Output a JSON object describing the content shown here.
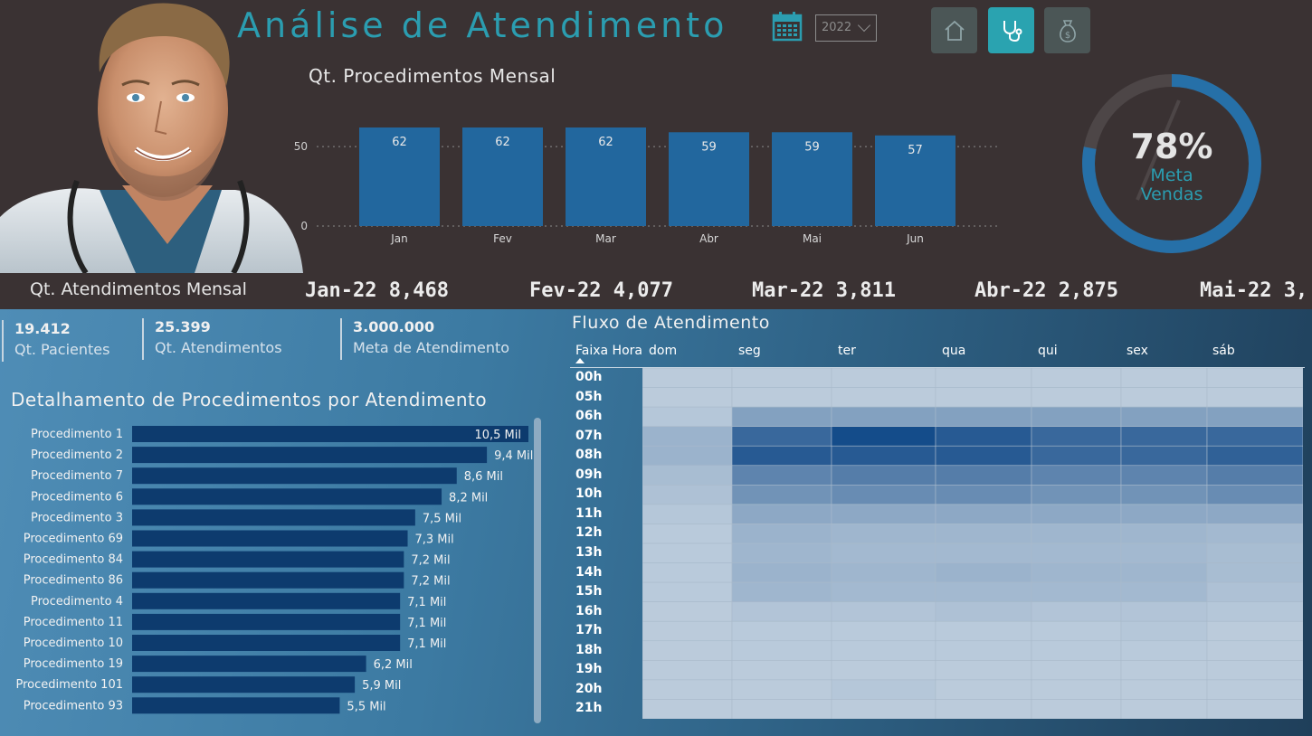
{
  "header": {
    "title": "Análise de Atendimento",
    "year_selected": "2022",
    "nav": [
      {
        "icon": "home-icon",
        "active": false
      },
      {
        "icon": "stethoscope-icon",
        "active": true
      },
      {
        "icon": "money-bag-icon",
        "active": false
      }
    ]
  },
  "monthly_chart": {
    "title": "Qt. Procedimentos Mensal",
    "chart_data": {
      "type": "bar",
      "categories": [
        "Jan",
        "Fev",
        "Mar",
        "Abr",
        "Mai",
        "Jun"
      ],
      "values": [
        62,
        62,
        62,
        59,
        59,
        57
      ],
      "yticks": [
        "0",
        "50"
      ],
      "ylim": [
        0,
        70
      ]
    }
  },
  "gauge": {
    "percent_label": "78%",
    "value": 0.78,
    "label_line1": "Meta",
    "label_line2": "Vendas"
  },
  "ticker": {
    "label": "Qt. Atendimentos Mensal",
    "items": [
      "Jan-22 8,468",
      "Fev-22 4,077",
      "Mar-22 3,811",
      "Abr-22 2,875",
      "Mai-22 3,"
    ]
  },
  "kpis": [
    {
      "value": "19.412",
      "label": "Qt. Pacientes"
    },
    {
      "value": "25.399",
      "label": "Qt. Atendimentos"
    },
    {
      "value": "3.000.000",
      "label": "Meta de Atendimento"
    }
  ],
  "detail": {
    "title": "Detalhamento de Procedimentos por Atendimento",
    "chart_data": {
      "type": "bar",
      "orientation": "horizontal",
      "categories": [
        "Procedimento 1",
        "Procedimento 2",
        "Procedimento 7",
        "Procedimento 6",
        "Procedimento 3",
        "Procedimento 69",
        "Procedimento 84",
        "Procedimento 86",
        "Procedimento 4",
        "Procedimento 11",
        "Procedimento 10",
        "Procedimento 19",
        "Procedimento 101",
        "Procedimento 93"
      ],
      "values": [
        10.5,
        9.4,
        8.6,
        8.2,
        7.5,
        7.3,
        7.2,
        7.2,
        7.1,
        7.1,
        7.1,
        6.2,
        5.9,
        5.5
      ],
      "labels": [
        "10,5 Mil",
        "9,4 Mil",
        "8,6 Mil",
        "8,2 Mil",
        "7,5 Mil",
        "7,3 Mil",
        "7,2 Mil",
        "7,2 Mil",
        "7,1 Mil",
        "7,1 Mil",
        "7,1 Mil",
        "6,2 Mil",
        "5,9 Mil",
        "5,5 Mil"
      ],
      "unit": "Mil"
    }
  },
  "flow": {
    "title": "Fluxo de Atendimento",
    "row_header": "Faixa Hora",
    "chart_data": {
      "type": "heatmap",
      "columns": [
        "dom",
        "seg",
        "ter",
        "qua",
        "qui",
        "sex",
        "sáb"
      ],
      "rows": [
        "00h",
        "05h",
        "06h",
        "07h",
        "08h",
        "09h",
        "10h",
        "11h",
        "12h",
        "13h",
        "14h",
        "15h",
        "16h",
        "17h",
        "18h",
        "19h",
        "20h",
        "21h"
      ],
      "values": [
        [
          0.05,
          0.05,
          0.05,
          0.05,
          0.05,
          0.05,
          0.05
        ],
        [
          0.05,
          0.05,
          0.05,
          0.05,
          0.05,
          0.05,
          0.05
        ],
        [
          0.08,
          0.35,
          0.35,
          0.35,
          0.35,
          0.35,
          0.35
        ],
        [
          0.22,
          0.75,
          0.95,
          0.85,
          0.75,
          0.75,
          0.75
        ],
        [
          0.22,
          0.85,
          0.85,
          0.85,
          0.75,
          0.75,
          0.8
        ],
        [
          0.15,
          0.55,
          0.6,
          0.6,
          0.55,
          0.55,
          0.6
        ],
        [
          0.12,
          0.45,
          0.5,
          0.5,
          0.45,
          0.45,
          0.5
        ],
        [
          0.08,
          0.3,
          0.3,
          0.3,
          0.3,
          0.3,
          0.3
        ],
        [
          0.06,
          0.22,
          0.2,
          0.2,
          0.2,
          0.2,
          0.18
        ],
        [
          0.06,
          0.2,
          0.18,
          0.18,
          0.18,
          0.18,
          0.15
        ],
        [
          0.06,
          0.22,
          0.2,
          0.22,
          0.2,
          0.2,
          0.15
        ],
        [
          0.06,
          0.2,
          0.18,
          0.18,
          0.18,
          0.18,
          0.12
        ],
        [
          0.05,
          0.1,
          0.1,
          0.12,
          0.1,
          0.1,
          0.08
        ],
        [
          0.05,
          0.06,
          0.06,
          0.06,
          0.06,
          0.08,
          0.05
        ],
        [
          0.05,
          0.06,
          0.06,
          0.06,
          0.06,
          0.06,
          0.05
        ],
        [
          0.05,
          0.05,
          0.05,
          0.05,
          0.05,
          0.05,
          0.05
        ],
        [
          0.05,
          0.05,
          0.08,
          0.05,
          0.05,
          0.05,
          0.05
        ],
        [
          0.05,
          0.05,
          0.05,
          0.05,
          0.05,
          0.05,
          0.05
        ]
      ]
    }
  },
  "colors": {
    "accent": "#2b9db0",
    "bar": "#22679e",
    "hbar": "#0d3b6e",
    "gauge": "#2670a8",
    "gauge_track": "#4d4647",
    "heat_low": "#c4d2e0",
    "heat_high": "#0b4585"
  }
}
